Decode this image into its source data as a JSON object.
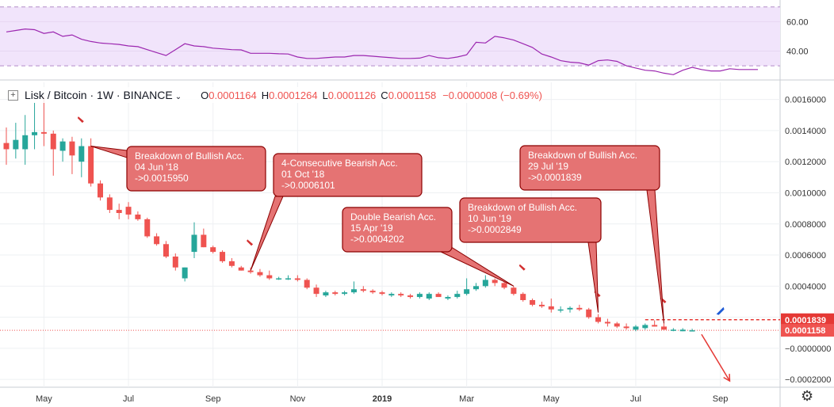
{
  "header": {
    "symbol": "Lisk / Bitcoin · 1W · BINANCE",
    "o_label": "O",
    "o": "0.0001164",
    "h_label": "H",
    "h": "0.0001264",
    "l_label": "L",
    "l": "0.0001126",
    "c_label": "C",
    "c": "0.0001158",
    "chg": "−0.0000008 (−0.69%)"
  },
  "chart_data": [
    {
      "type": "line",
      "title": "",
      "ylim": [
        22,
        72
      ],
      "band": [
        30,
        70
      ],
      "yticks": [
        {
          "v": 60,
          "label": "60.00"
        },
        {
          "v": 40,
          "label": "40.00"
        }
      ],
      "color": "#9c27b0",
      "values": [
        53,
        54,
        55,
        54.5,
        52,
        53,
        50,
        51,
        48,
        46.5,
        45.5,
        45,
        44.5,
        43.5,
        43,
        41,
        39,
        37,
        41,
        45,
        43.5,
        43,
        42,
        41.5,
        41,
        40.8,
        38.5,
        38.5,
        38.5,
        38.2,
        38,
        36,
        35,
        35,
        35.5,
        36,
        36,
        37,
        37,
        36.5,
        36,
        35.5,
        35,
        35,
        35.2,
        37,
        35.5,
        35,
        36,
        37.5,
        46,
        45.5,
        50,
        49,
        47.5,
        45,
        42.5,
        38,
        36,
        33.5,
        32.5,
        32,
        30.5,
        33.5,
        34,
        33,
        30,
        28.5,
        27,
        26.5,
        25,
        24,
        27,
        29,
        27.5,
        26.5,
        26.5,
        28,
        27.5,
        27.5,
        27.5
      ]
    },
    {
      "type": "candlestick",
      "title": "Lisk / Bitcoin · 1W · BINANCE",
      "ylim": [
        -0.00025,
        0.00171
      ],
      "yticks": [
        {
          "v": 0.0016,
          "label": "0.0016000"
        },
        {
          "v": 0.0014,
          "label": "0.0014000"
        },
        {
          "v": 0.0012,
          "label": "0.0012000"
        },
        {
          "v": 0.001,
          "label": "0.0010000"
        },
        {
          "v": 0.0008,
          "label": "0.0008000"
        },
        {
          "v": 0.0006,
          "label": "0.0006000"
        },
        {
          "v": 0.0004,
          "label": "0.0004000"
        },
        {
          "v": 0.0002,
          "label": ""
        },
        {
          "v": 0.0,
          "label": "−0.0000000"
        },
        {
          "v": -0.0002,
          "label": "−0.0002000"
        }
      ],
      "xticks": [
        {
          "i": 4,
          "label": "May"
        },
        {
          "i": 13,
          "label": "Jul"
        },
        {
          "i": 22,
          "label": "Sep"
        },
        {
          "i": 31,
          "label": "Nov"
        },
        {
          "i": 40,
          "label": "2019"
        },
        {
          "i": 49,
          "label": "Mar"
        },
        {
          "i": 58,
          "label": "May"
        },
        {
          "i": 67,
          "label": "Jul"
        },
        {
          "i": 76,
          "label": "Sep"
        }
      ],
      "up_color": "#26a69a",
      "down_color": "#ef5350",
      "candles": [
        {
          "o": 0.00132,
          "h": 0.00142,
          "l": 0.00118,
          "c": 0.00128
        },
        {
          "o": 0.00128,
          "h": 0.00145,
          "l": 0.00122,
          "c": 0.00134
        },
        {
          "o": 0.00128,
          "h": 0.0015,
          "l": 0.00118,
          "c": 0.00137
        },
        {
          "o": 0.00137,
          "h": 0.00158,
          "l": 0.00128,
          "c": 0.00139
        },
        {
          "o": 0.00139,
          "h": 0.00162,
          "l": 0.0013,
          "c": 0.00138
        },
        {
          "o": 0.00138,
          "h": 0.0014,
          "l": 0.00111,
          "c": 0.00128
        },
        {
          "o": 0.00127,
          "h": 0.00135,
          "l": 0.0012,
          "c": 0.00133
        },
        {
          "o": 0.00133,
          "h": 0.00136,
          "l": 0.00112,
          "c": 0.00124
        },
        {
          "o": 0.0012,
          "h": 0.00135,
          "l": 0.0011,
          "c": 0.0013
        },
        {
          "o": 0.0013,
          "h": 0.00135,
          "l": 0.00104,
          "c": 0.00106
        },
        {
          "o": 0.00106,
          "h": 0.00108,
          "l": 0.00095,
          "c": 0.00097
        },
        {
          "o": 0.00097,
          "h": 0.00099,
          "l": 0.00087,
          "c": 0.00089
        },
        {
          "o": 0.00089,
          "h": 0.00093,
          "l": 0.00083,
          "c": 0.00087
        },
        {
          "o": 0.00091,
          "h": 0.00094,
          "l": 0.00083,
          "c": 0.00086
        },
        {
          "o": 0.00086,
          "h": 0.00088,
          "l": 0.00082,
          "c": 0.00083
        },
        {
          "o": 0.00083,
          "h": 0.00084,
          "l": 0.00071,
          "c": 0.00072
        },
        {
          "o": 0.00072,
          "h": 0.00074,
          "l": 0.00066,
          "c": 0.00067
        },
        {
          "o": 0.00067,
          "h": 0.00069,
          "l": 0.00058,
          "c": 0.00059
        },
        {
          "o": 0.00059,
          "h": 0.00061,
          "l": 0.0005,
          "c": 0.00052
        },
        {
          "o": 0.00045,
          "h": 0.00052,
          "l": 0.00043,
          "c": 0.00052
        },
        {
          "o": 0.00062,
          "h": 0.00081,
          "l": 0.00058,
          "c": 0.00073
        },
        {
          "o": 0.00073,
          "h": 0.00077,
          "l": 0.00065,
          "c": 0.00065
        },
        {
          "o": 0.00065,
          "h": 0.00066,
          "l": 0.00061,
          "c": 0.00062
        },
        {
          "o": 0.00062,
          "h": 0.00063,
          "l": 0.00055,
          "c": 0.00056
        },
        {
          "o": 0.00056,
          "h": 0.00058,
          "l": 0.00052,
          "c": 0.00053
        },
        {
          "o": 0.00052,
          "h": 0.00053,
          "l": 0.0005,
          "c": 0.0005
        },
        {
          "o": 0.0005,
          "h": 0.00052,
          "l": 0.00048,
          "c": 0.00049
        },
        {
          "o": 0.00049,
          "h": 0.00051,
          "l": 0.00046,
          "c": 0.00047
        },
        {
          "o": 0.00047,
          "h": 0.0005,
          "l": 0.00044,
          "c": 0.00045
        },
        {
          "o": 0.00045,
          "h": 0.00046,
          "l": 0.00044,
          "c": 0.00045
        },
        {
          "o": 0.00045,
          "h": 0.00047,
          "l": 0.00044,
          "c": 0.00045
        },
        {
          "o": 0.00045,
          "h": 0.00047,
          "l": 0.00043,
          "c": 0.00044
        },
        {
          "o": 0.00044,
          "h": 0.00045,
          "l": 0.00038,
          "c": 0.00039
        },
        {
          "o": 0.00039,
          "h": 0.00041,
          "l": 0.00033,
          "c": 0.00035
        },
        {
          "o": 0.00034,
          "h": 0.00037,
          "l": 0.00033,
          "c": 0.00036
        },
        {
          "o": 0.00036,
          "h": 0.00037,
          "l": 0.00034,
          "c": 0.00035
        },
        {
          "o": 0.00035,
          "h": 0.00037,
          "l": 0.00034,
          "c": 0.00036
        },
        {
          "o": 0.00036,
          "h": 0.00043,
          "l": 0.00035,
          "c": 0.00038
        },
        {
          "o": 0.00038,
          "h": 0.0004,
          "l": 0.00036,
          "c": 0.00037
        },
        {
          "o": 0.00037,
          "h": 0.00038,
          "l": 0.00035,
          "c": 0.00036
        },
        {
          "o": 0.00036,
          "h": 0.00037,
          "l": 0.00034,
          "c": 0.00035
        },
        {
          "o": 0.00034,
          "h": 0.00036,
          "l": 0.00033,
          "c": 0.00035
        },
        {
          "o": 0.00035,
          "h": 0.00036,
          "l": 0.00033,
          "c": 0.00034
        },
        {
          "o": 0.00034,
          "h": 0.00035,
          "l": 0.00032,
          "c": 0.00033
        },
        {
          "o": 0.00033,
          "h": 0.00036,
          "l": 0.00032,
          "c": 0.00035
        },
        {
          "o": 0.00032,
          "h": 0.00036,
          "l": 0.00031,
          "c": 0.00035
        },
        {
          "o": 0.00035,
          "h": 0.00036,
          "l": 0.00033,
          "c": 0.00033
        },
        {
          "o": 0.00032,
          "h": 0.00034,
          "l": 0.00031,
          "c": 0.00033
        },
        {
          "o": 0.00033,
          "h": 0.00037,
          "l": 0.00032,
          "c": 0.00035
        },
        {
          "o": 0.00035,
          "h": 0.00045,
          "l": 0.00034,
          "c": 0.00038
        },
        {
          "o": 0.00038,
          "h": 0.00042,
          "l": 0.00037,
          "c": 0.0004
        },
        {
          "o": 0.0004,
          "h": 0.00047,
          "l": 0.00039,
          "c": 0.00044
        },
        {
          "o": 0.00044,
          "h": 0.00045,
          "l": 0.0004,
          "c": 0.00042
        },
        {
          "o": 0.00042,
          "h": 0.00043,
          "l": 0.00038,
          "c": 0.00039
        },
        {
          "o": 0.00039,
          "h": 0.0004,
          "l": 0.00034,
          "c": 0.00035
        },
        {
          "o": 0.00035,
          "h": 0.00036,
          "l": 0.0003,
          "c": 0.00031
        },
        {
          "o": 0.00031,
          "h": 0.00032,
          "l": 0.00027,
          "c": 0.00028
        },
        {
          "o": 0.00028,
          "h": 0.0003,
          "l": 0.00026,
          "c": 0.00027
        },
        {
          "o": 0.00027,
          "h": 0.00032,
          "l": 0.00023,
          "c": 0.00025
        },
        {
          "o": 0.00025,
          "h": 0.00027,
          "l": 0.00023,
          "c": 0.00025
        },
        {
          "o": 0.00025,
          "h": 0.00027,
          "l": 0.00023,
          "c": 0.00026
        },
        {
          "o": 0.00026,
          "h": 0.00028,
          "l": 0.00024,
          "c": 0.00025
        },
        {
          "o": 0.00025,
          "h": 0.00026,
          "l": 0.00019,
          "c": 0.0002
        },
        {
          "o": 0.0002,
          "h": 0.00022,
          "l": 0.00016,
          "c": 0.00017
        },
        {
          "o": 0.00017,
          "h": 0.00019,
          "l": 0.00014,
          "c": 0.00016
        },
        {
          "o": 0.00016,
          "h": 0.00017,
          "l": 0.00013,
          "c": 0.00014
        },
        {
          "o": 0.00014,
          "h": 0.00016,
          "l": 0.00012,
          "c": 0.00013
        },
        {
          "o": 0.00012,
          "h": 0.00015,
          "l": 0.00011,
          "c": 0.00014
        },
        {
          "o": 0.00013,
          "h": 0.00016,
          "l": 0.00012,
          "c": 0.00015
        },
        {
          "o": 0.00015,
          "h": 0.00018,
          "l": 0.00014,
          "c": 0.00014
        },
        {
          "o": 0.00014,
          "h": 0.00016,
          "l": 0.00012,
          "c": 0.00012
        },
        {
          "o": 0.00012,
          "h": 0.00013,
          "l": 0.00011,
          "c": 0.00012
        },
        {
          "o": 0.00011,
          "h": 0.00013,
          "l": 0.00011,
          "c": 0.00012
        },
        {
          "o": 0.000116,
          "h": 0.000126,
          "l": 0.000113,
          "c": 0.000116
        }
      ],
      "price_lines": [
        {
          "label": "0.0001839",
          "v": 0.0001839,
          "color": "#e53935"
        },
        {
          "label": "0.0001158",
          "v": 0.0001158,
          "color": "#ef5350"
        }
      ],
      "callouts": [
        {
          "lines": [
            "Breakdown of Bullish Acc.",
            "04 Jun '18",
            "->0.0015950"
          ],
          "anchor_i": 9,
          "anchor_v": 0.0013
        },
        {
          "lines": [
            "4-Consecutive Bearish Acc.",
            "01 Oct '18",
            "->0.0006101"
          ],
          "anchor_i": 26,
          "anchor_v": 0.0005
        },
        {
          "lines": [
            "Double Bearish Acc.",
            "15 Apr '19",
            "->0.0004202"
          ],
          "anchor_i": 54,
          "anchor_v": 0.0004
        },
        {
          "lines": [
            "Breakdown of Bullish Acc.",
            "10 Jun '19",
            "->0.0002849"
          ],
          "anchor_i": 63,
          "anchor_v": 0.00023
        },
        {
          "lines": [
            "Breakdown of Bullish Acc.",
            "29 Jul '19",
            "->0.0001839"
          ],
          "anchor_i": 70,
          "anchor_v": 0.00016
        }
      ],
      "sell_markers": [
        {
          "i": 8,
          "v": 0.00147
        },
        {
          "i": 26,
          "v": 0.00068
        },
        {
          "i": 55,
          "v": 0.00052
        },
        {
          "i": 63,
          "v": 0.00035
        },
        {
          "i": 70,
          "v": 0.00031
        }
      ],
      "buy_marker": {
        "i": 76,
        "v": 0.00024
      },
      "projection": {
        "from_i": 74,
        "from_v": 9e-05,
        "to_i": 77,
        "to_v": -0.00021
      }
    }
  ]
}
